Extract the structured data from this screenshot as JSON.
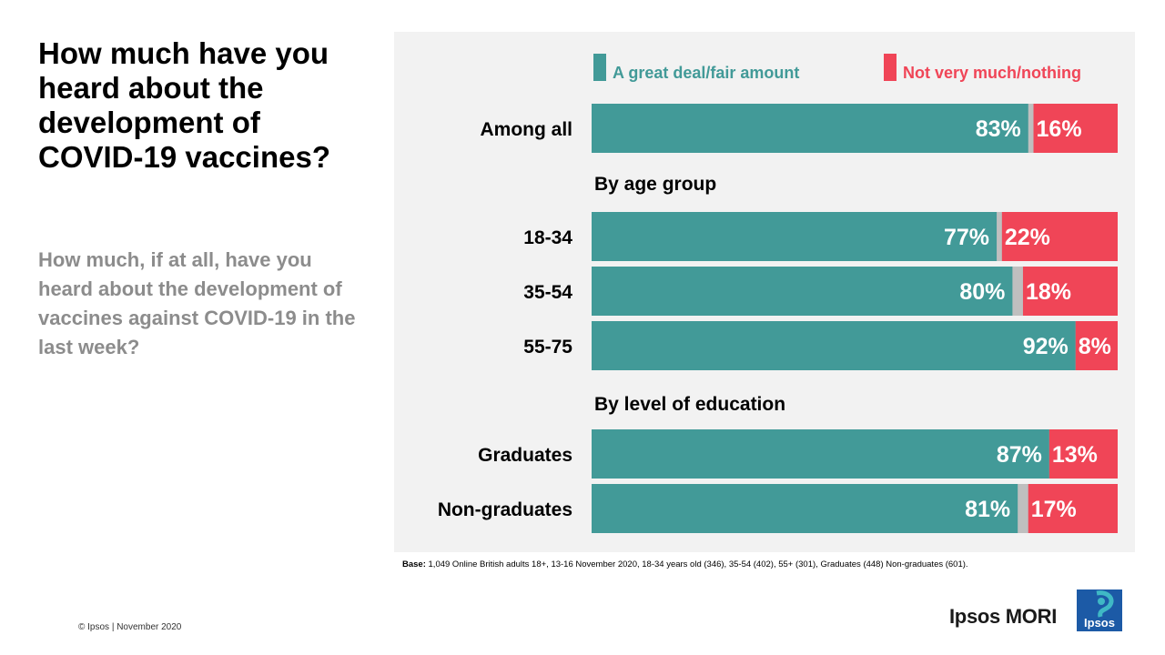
{
  "title": "How much have you heard about the development of COVID-19 vaccines?",
  "subtitle": "How much, if at all, have you heard about the development of vaccines against COVID-19 in the last week?",
  "base_note": {
    "label": "Base:",
    "text": "1,049 Online British adults 18+, 13-16 November 2020, 18-34 years old (346), 35-54 (402), 55+ (301), Graduates (448) Non-graduates (601)."
  },
  "footer": {
    "copyright": "© Ipsos | November 2020",
    "brand": "Ipsos MORI",
    "logo_text": "Ipsos"
  },
  "colors": {
    "great_deal": "#429a98",
    "not_much": "#f04557",
    "dont_know": "#bfbfbf",
    "panel": "#f2f2f2"
  },
  "chart_data": {
    "type": "bar",
    "orientation": "horizontal",
    "stacked": true,
    "legend_position": "top",
    "series": [
      {
        "name": "A great deal/fair amount",
        "color": "#429a98",
        "values": [
          83,
          77,
          80,
          92,
          87,
          81
        ]
      },
      {
        "name": "Not very much/nothing",
        "color": "#f04557",
        "values": [
          16,
          22,
          18,
          8,
          13,
          17
        ]
      }
    ],
    "categories": [
      "Among all",
      "18-34",
      "35-54",
      "55-75",
      "Graduates",
      "Non-graduates"
    ],
    "groups": [
      {
        "label": "",
        "categories": [
          "Among all"
        ]
      },
      {
        "label": "By age group",
        "categories": [
          "18-34",
          "35-54",
          "55-75"
        ]
      },
      {
        "label": "By level of education",
        "categories": [
          "Graduates",
          "Non-graduates"
        ]
      }
    ],
    "data_labels": [
      [
        "83%",
        "77%",
        "80%",
        "92%",
        "87%",
        "81%"
      ],
      [
        "16%",
        "22%",
        "18%",
        "8%",
        "13%",
        "17%"
      ]
    ],
    "xlim": [
      0,
      100
    ]
  }
}
